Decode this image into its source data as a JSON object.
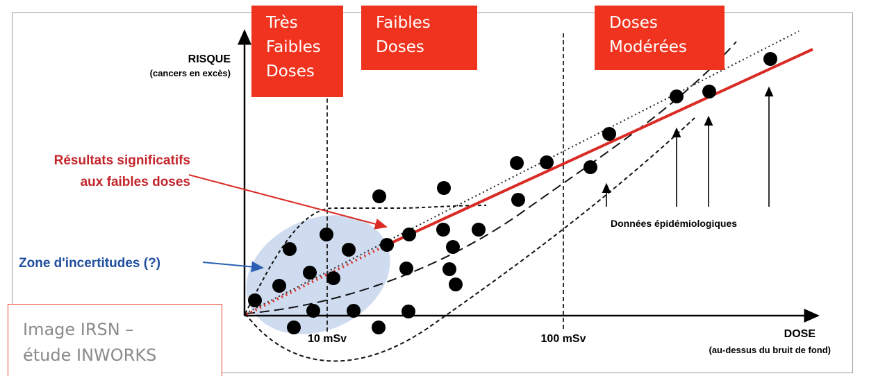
{
  "chart_data": {
    "type": "scatter",
    "title": "",
    "ylabel": "RISQUE",
    "ylabel_sub": "(cancers en excès)",
    "xlabel": "DOSE",
    "xlabel_sub": "(au-dessus du bruit de fond)",
    "x_ticks": [
      "10 mSv",
      "100 mSv"
    ],
    "zones": [
      {
        "label": "Très Faibles Doses",
        "lines": [
          "Très",
          "Faibles",
          "Doses"
        ]
      },
      {
        "label": "Faibles Doses",
        "lines": [
          "Faibles",
          "Doses"
        ]
      },
      {
        "label": "Doses Modérées",
        "lines": [
          "Doses",
          "Modérées"
        ]
      }
    ],
    "annotations": {
      "significant_lines": [
        "Résultats significatifs",
        "aux faibles doses"
      ],
      "uncertainty": "Zone d'incertitudes (?)",
      "epidemiology": "Données épidémiologiques"
    },
    "caption": [
      "Image IRSN –",
      "étude INWORKS"
    ],
    "colors": {
      "zone_box": "#f0331f",
      "fit_line": "#d92b24",
      "significant_text": "#c3252b",
      "uncertainty_text": "#1f4e9c",
      "uncertainty_zone": "#c7d5ec",
      "points": "#000000"
    }
  }
}
